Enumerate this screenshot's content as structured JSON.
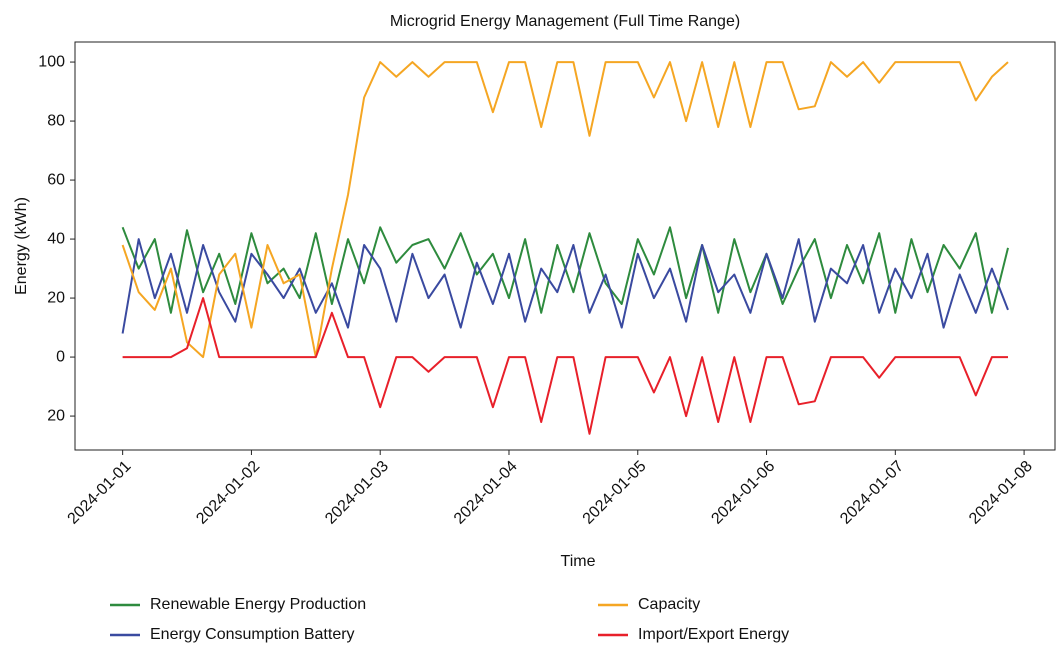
{
  "chart_data": {
    "type": "line",
    "title": "Microgrid Energy Management (Full Time Range)",
    "xlabel": "Time",
    "ylabel": "Energy (kWh)",
    "x": [
      0,
      0.125,
      0.25,
      0.375,
      0.5,
      0.625,
      0.75,
      0.875,
      1,
      1.125,
      1.25,
      1.375,
      1.5,
      1.625,
      1.75,
      1.875,
      2,
      2.125,
      2.25,
      2.375,
      2.5,
      2.625,
      2.75,
      2.875,
      3,
      3.125,
      3.25,
      3.375,
      3.5,
      3.625,
      3.75,
      3.875,
      4,
      4.125,
      4.25,
      4.375,
      4.5,
      4.625,
      4.75,
      4.875,
      5,
      5.125,
      5.25,
      5.375,
      5.5,
      5.625,
      5.75,
      5.875,
      6,
      6.125,
      6.25,
      6.375,
      6.5,
      6.625,
      6.75,
      6.875
    ],
    "series": [
      {
        "name": "Renewable Energy Production",
        "color": "#2e8b3e",
        "values": [
          44,
          30,
          40,
          15,
          43,
          22,
          35,
          18,
          42,
          25,
          30,
          20,
          42,
          18,
          40,
          25,
          44,
          32,
          38,
          40,
          30,
          42,
          28,
          35,
          20,
          40,
          15,
          38,
          22,
          42,
          25,
          18,
          40,
          28,
          44,
          20,
          38,
          15,
          40,
          22,
          35,
          18,
          30,
          40,
          20,
          38,
          25,
          42,
          15,
          40,
          22,
          38,
          30,
          42,
          15,
          37
        ]
      },
      {
        "name": "Energy Consumption Battery",
        "color": "#3a4aa0",
        "values": [
          8,
          40,
          20,
          35,
          15,
          38,
          22,
          12,
          35,
          28,
          20,
          30,
          15,
          25,
          10,
          38,
          30,
          12,
          35,
          20,
          28,
          10,
          32,
          18,
          35,
          12,
          30,
          22,
          38,
          15,
          28,
          10,
          35,
          20,
          30,
          12,
          38,
          22,
          28,
          15,
          35,
          20,
          40,
          12,
          30,
          25,
          38,
          15,
          30,
          20,
          35,
          10,
          28,
          15,
          30,
          16
        ]
      },
      {
        "name": "Capacity",
        "color": "#f5a623",
        "values": [
          38,
          22,
          16,
          30,
          5,
          0,
          28,
          35,
          10,
          38,
          25,
          28,
          0,
          30,
          55,
          88,
          100,
          95,
          100,
          95,
          100,
          100,
          100,
          83,
          100,
          100,
          78,
          100,
          100,
          75,
          100,
          100,
          100,
          88,
          100,
          80,
          100,
          78,
          100,
          78,
          100,
          100,
          84,
          85,
          100,
          95,
          100,
          93,
          100,
          100,
          100,
          100,
          100,
          87,
          95,
          100
        ]
      },
      {
        "name": "Import/Export Energy",
        "color": "#e8202a",
        "values": [
          0,
          0,
          0,
          0,
          3,
          20,
          0,
          0,
          0,
          0,
          0,
          0,
          0,
          15,
          0,
          0,
          -17,
          0,
          0,
          -5,
          0,
          0,
          0,
          -17,
          0,
          0,
          -22,
          0,
          0,
          -26,
          0,
          0,
          0,
          -12,
          0,
          -20,
          0,
          -22,
          0,
          -22,
          0,
          0,
          -16,
          -15,
          0,
          0,
          0,
          -7,
          0,
          0,
          0,
          0,
          0,
          -13,
          0,
          0
        ]
      }
    ],
    "xlim": [
      -0.37,
      7.24
    ],
    "xticks": [
      {
        "value": 0,
        "label": "2024-01-01"
      },
      {
        "value": 1,
        "label": "2024-01-02"
      },
      {
        "value": 2,
        "label": "2024-01-03"
      },
      {
        "value": 3,
        "label": "2024-01-04"
      },
      {
        "value": 4,
        "label": "2024-01-05"
      },
      {
        "value": 5,
        "label": "2024-01-06"
      },
      {
        "value": 6,
        "label": "2024-01-07"
      },
      {
        "value": 7,
        "label": "2024-01-08"
      }
    ],
    "ylim": [
      -31.5,
      106.8
    ],
    "yticks": [
      {
        "value": -20,
        "label": "20"
      },
      0,
      20,
      40,
      60,
      80,
      100
    ],
    "grid": false,
    "legend": "lower center"
  }
}
